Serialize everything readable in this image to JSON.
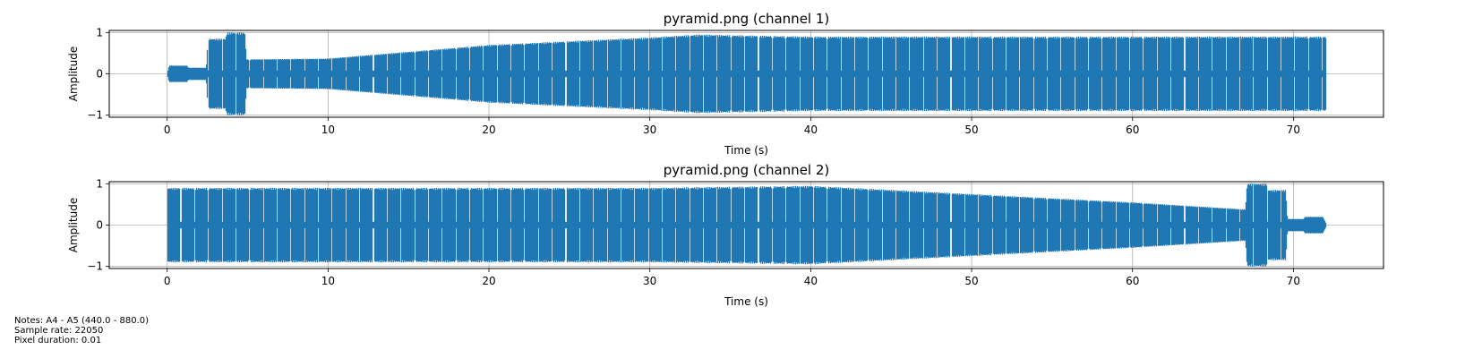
{
  "chart_data": [
    {
      "type": "line",
      "title": "pyramid.png (channel 1)",
      "xlabel": "Time (s)",
      "ylabel": "Amplitude",
      "xlim": [
        -3.6,
        75.6
      ],
      "ylim": [
        -1.05,
        1.05
      ],
      "xticks": [
        0,
        10,
        20,
        30,
        40,
        50,
        60,
        70
      ],
      "yticks": [
        -1,
        0,
        1
      ],
      "grid": true,
      "color": "#1f77b4",
      "envelope": [
        [
          0,
          0.05
        ],
        [
          0.1,
          0.2
        ],
        [
          1.2,
          0.2
        ],
        [
          1.3,
          0.15
        ],
        [
          2.4,
          0.15
        ],
        [
          2.5,
          0.85
        ],
        [
          3.6,
          0.85
        ],
        [
          3.7,
          1.0
        ],
        [
          4.8,
          1.0
        ],
        [
          4.9,
          0.35
        ],
        [
          10,
          0.37
        ],
        [
          20,
          0.7
        ],
        [
          30,
          0.88
        ],
        [
          33,
          0.95
        ],
        [
          40,
          0.9
        ],
        [
          72,
          0.9
        ]
      ]
    },
    {
      "type": "line",
      "title": "pyramid.png (channel 2)",
      "xlabel": "Time (s)",
      "ylabel": "Amplitude",
      "xlim": [
        -3.6,
        75.6
      ],
      "ylim": [
        -1.05,
        1.05
      ],
      "xticks": [
        0,
        10,
        20,
        30,
        40,
        50,
        60,
        70
      ],
      "yticks": [
        -1,
        0,
        1
      ],
      "grid": true,
      "color": "#1f77b4",
      "envelope": [
        [
          0,
          0.9
        ],
        [
          30,
          0.9
        ],
        [
          40,
          0.95
        ],
        [
          50,
          0.75
        ],
        [
          60,
          0.55
        ],
        [
          67,
          0.38
        ],
        [
          67.1,
          1.0
        ],
        [
          68.3,
          1.0
        ],
        [
          68.4,
          0.85
        ],
        [
          69.5,
          0.85
        ],
        [
          69.6,
          0.15
        ],
        [
          70.6,
          0.15
        ],
        [
          70.7,
          0.2
        ],
        [
          71.8,
          0.2
        ],
        [
          72,
          0.05
        ]
      ]
    }
  ],
  "notes": {
    "line1": "Notes: A4 - A5 (440.0 - 880.0)",
    "line2": "Sample rate: 22050",
    "line3": "Pixel duration: 0.01"
  }
}
